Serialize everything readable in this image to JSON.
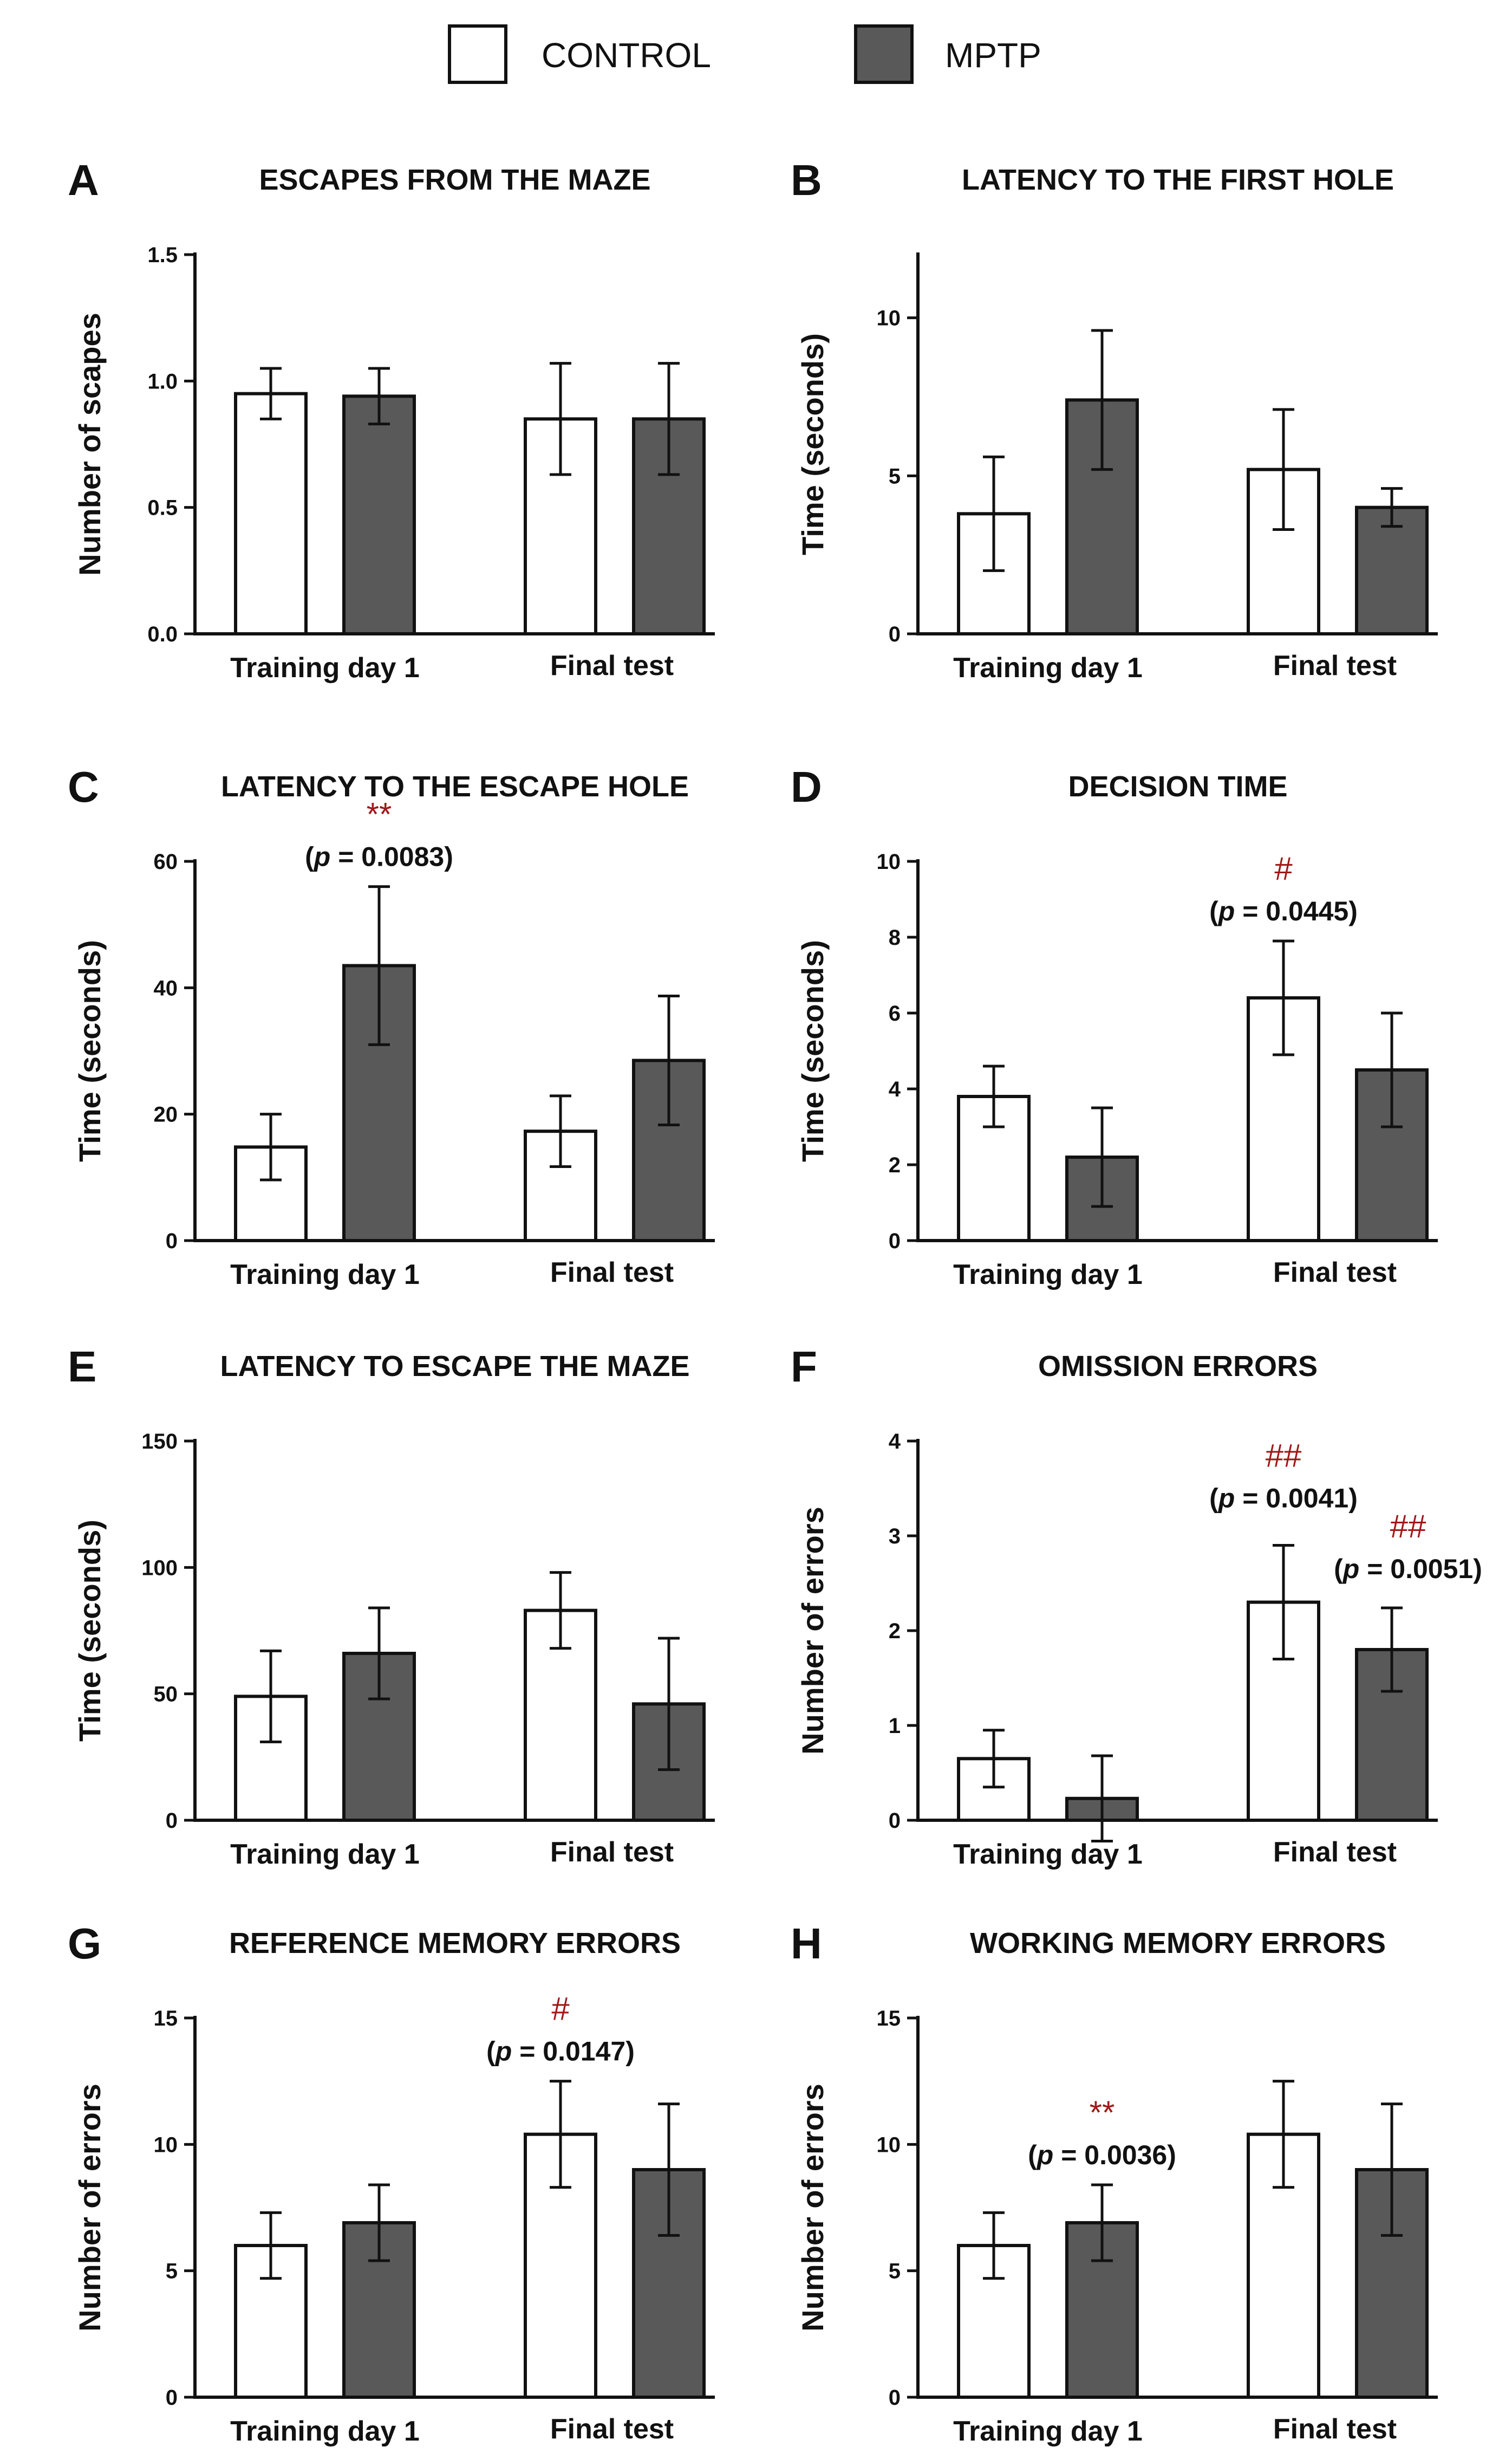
{
  "legend": [
    {
      "label": "CONTROL",
      "color": "#ffffff"
    },
    {
      "label": "MPTP",
      "color": "#595959"
    }
  ],
  "chart_data": [
    {
      "panel": "A",
      "type": "bar",
      "title": "ESCAPES FROM THE MAZE",
      "ylabel": "Number of scapes",
      "ylim": [
        0,
        1.5
      ],
      "yticks": [
        "0.0",
        "0.5",
        "1.0",
        "1.5"
      ],
      "categories": [
        "Training day 1",
        "Final test"
      ],
      "series": [
        {
          "name": "CONTROL",
          "values": [
            0.95,
            0.85
          ],
          "errors": [
            0.1,
            0.22
          ]
        },
        {
          "name": "MPTP",
          "values": [
            0.94,
            0.85
          ],
          "errors": [
            0.11,
            0.22
          ]
        }
      ],
      "annotations": []
    },
    {
      "panel": "B",
      "type": "bar",
      "title": "LATENCY TO THE FIRST HOLE",
      "ylabel": "Time (seconds)",
      "ylim": [
        0,
        12
      ],
      "yticks": [
        "0",
        "5",
        "10"
      ],
      "categories": [
        "Training day 1",
        "Final test"
      ],
      "series": [
        {
          "name": "CONTROL",
          "values": [
            3.8,
            5.2
          ],
          "errors": [
            1.8,
            1.9
          ]
        },
        {
          "name": "MPTP",
          "values": [
            7.4,
            4.0
          ],
          "errors": [
            2.2,
            0.6
          ]
        }
      ],
      "annotations": []
    },
    {
      "panel": "C",
      "type": "bar",
      "title": "LATENCY TO THE ESCAPE HOLE",
      "ylabel": "Time (seconds)",
      "ylim": [
        0,
        60
      ],
      "yticks": [
        "0",
        "20",
        "40",
        "60"
      ],
      "categories": [
        "Training day 1",
        "Final test"
      ],
      "series": [
        {
          "name": "CONTROL",
          "values": [
            14.8,
            17.3
          ],
          "errors": [
            5.2,
            5.6
          ]
        },
        {
          "name": "MPTP",
          "values": [
            43.5,
            28.5
          ],
          "errors": [
            12.5,
            10.2
          ]
        }
      ],
      "annotations": [
        {
          "series": "MPTP",
          "category": "Training day 1",
          "mark": "**",
          "p_text": "(p = 0.0083)",
          "p_prefix": "(",
          "p_italic": "p",
          "p_rest": " = 0.0083)"
        }
      ]
    },
    {
      "panel": "D",
      "type": "bar",
      "title": "DECISION TIME",
      "ylabel": "Time (seconds)",
      "ylim": [
        0,
        10
      ],
      "yticks": [
        "0",
        "2",
        "4",
        "6",
        "8",
        "10"
      ],
      "categories": [
        "Training day 1",
        "Final test"
      ],
      "series": [
        {
          "name": "CONTROL",
          "values": [
            3.8,
            6.4
          ],
          "errors": [
            0.8,
            1.5
          ]
        },
        {
          "name": "MPTP",
          "values": [
            2.2,
            4.5
          ],
          "errors": [
            1.3,
            1.5
          ]
        }
      ],
      "annotations": [
        {
          "series": "CONTROL",
          "category": "Final test",
          "mark": "#",
          "p_text": "(p = 0.0445)",
          "p_prefix": "(",
          "p_italic": "p",
          "p_rest": " = 0.0445)"
        }
      ]
    },
    {
      "panel": "E",
      "type": "bar",
      "title": "LATENCY TO ESCAPE THE MAZE",
      "ylabel": "Time (seconds)",
      "ylim": [
        0,
        150
      ],
      "yticks": [
        "0",
        "50",
        "100",
        "150"
      ],
      "categories": [
        "Training day 1",
        "Final test"
      ],
      "series": [
        {
          "name": "CONTROL",
          "values": [
            49,
            83
          ],
          "errors": [
            18,
            15
          ]
        },
        {
          "name": "MPTP",
          "values": [
            66,
            46
          ],
          "errors": [
            18,
            26
          ]
        }
      ],
      "annotations": []
    },
    {
      "panel": "F",
      "type": "bar",
      "title": "OMISSION ERRORS",
      "ylabel": "Number of errors",
      "ylim": [
        0,
        4
      ],
      "yticks": [
        "0",
        "1",
        "2",
        "3",
        "4"
      ],
      "categories": [
        "Training day 1",
        "Final test"
      ],
      "series": [
        {
          "name": "CONTROL",
          "values": [
            0.65,
            2.3
          ],
          "errors": [
            0.3,
            0.6
          ]
        },
        {
          "name": "MPTP",
          "values": [
            0.23,
            1.8
          ],
          "errors": [
            0.45,
            0.44
          ]
        }
      ],
      "annotations": [
        {
          "series": "CONTROL",
          "category": "Final test",
          "mark": "##",
          "p_text": "(p = 0.0041)",
          "p_prefix": "(",
          "p_italic": "p",
          "p_rest": " = 0.0041)"
        },
        {
          "series": "MPTP",
          "category": "Final test",
          "mark": "##",
          "p_text": "(p = 0.0051)",
          "p_prefix": "(",
          "p_italic": "p",
          "p_rest": " = 0.0051)"
        }
      ]
    },
    {
      "panel": "G",
      "type": "bar",
      "title": "REFERENCE MEMORY ERRORS",
      "ylabel": "Number of errors",
      "ylim": [
        0,
        15
      ],
      "yticks": [
        "0",
        "5",
        "10",
        "15"
      ],
      "categories": [
        "Training day 1",
        "Final test"
      ],
      "series": [
        {
          "name": "CONTROL",
          "values": [
            6.0,
            10.4
          ],
          "errors": [
            1.3,
            2.1
          ]
        },
        {
          "name": "MPTP",
          "values": [
            6.9,
            9.0
          ],
          "errors": [
            1.5,
            2.6
          ]
        }
      ],
      "annotations": [
        {
          "series": "CONTROL",
          "category": "Final test",
          "mark": "#",
          "p_text": "(p = 0.0147)",
          "p_prefix": "(",
          "p_italic": "p",
          "p_rest": " = 0.0147)"
        }
      ]
    },
    {
      "panel": "H",
      "type": "bar",
      "title": "WORKING MEMORY ERRORS",
      "ylabel": "Number of errors",
      "ylim": [
        0,
        15
      ],
      "yticks": [
        "0",
        "5",
        "10",
        "15"
      ],
      "categories": [
        "Training day 1",
        "Final test"
      ],
      "series": [
        {
          "name": "CONTROL",
          "values": [
            6.0,
            10.4
          ],
          "errors": [
            1.3,
            2.1
          ]
        },
        {
          "name": "MPTP",
          "values": [
            6.9,
            9.0
          ],
          "errors": [
            1.5,
            2.6
          ]
        }
      ],
      "annotations": [
        {
          "series": "MPTP",
          "category": "Training day 1",
          "mark": "**",
          "p_text": "(p = 0.0036)",
          "p_prefix": "(",
          "p_italic": "p",
          "p_rest": " = 0.0036)"
        }
      ]
    }
  ]
}
